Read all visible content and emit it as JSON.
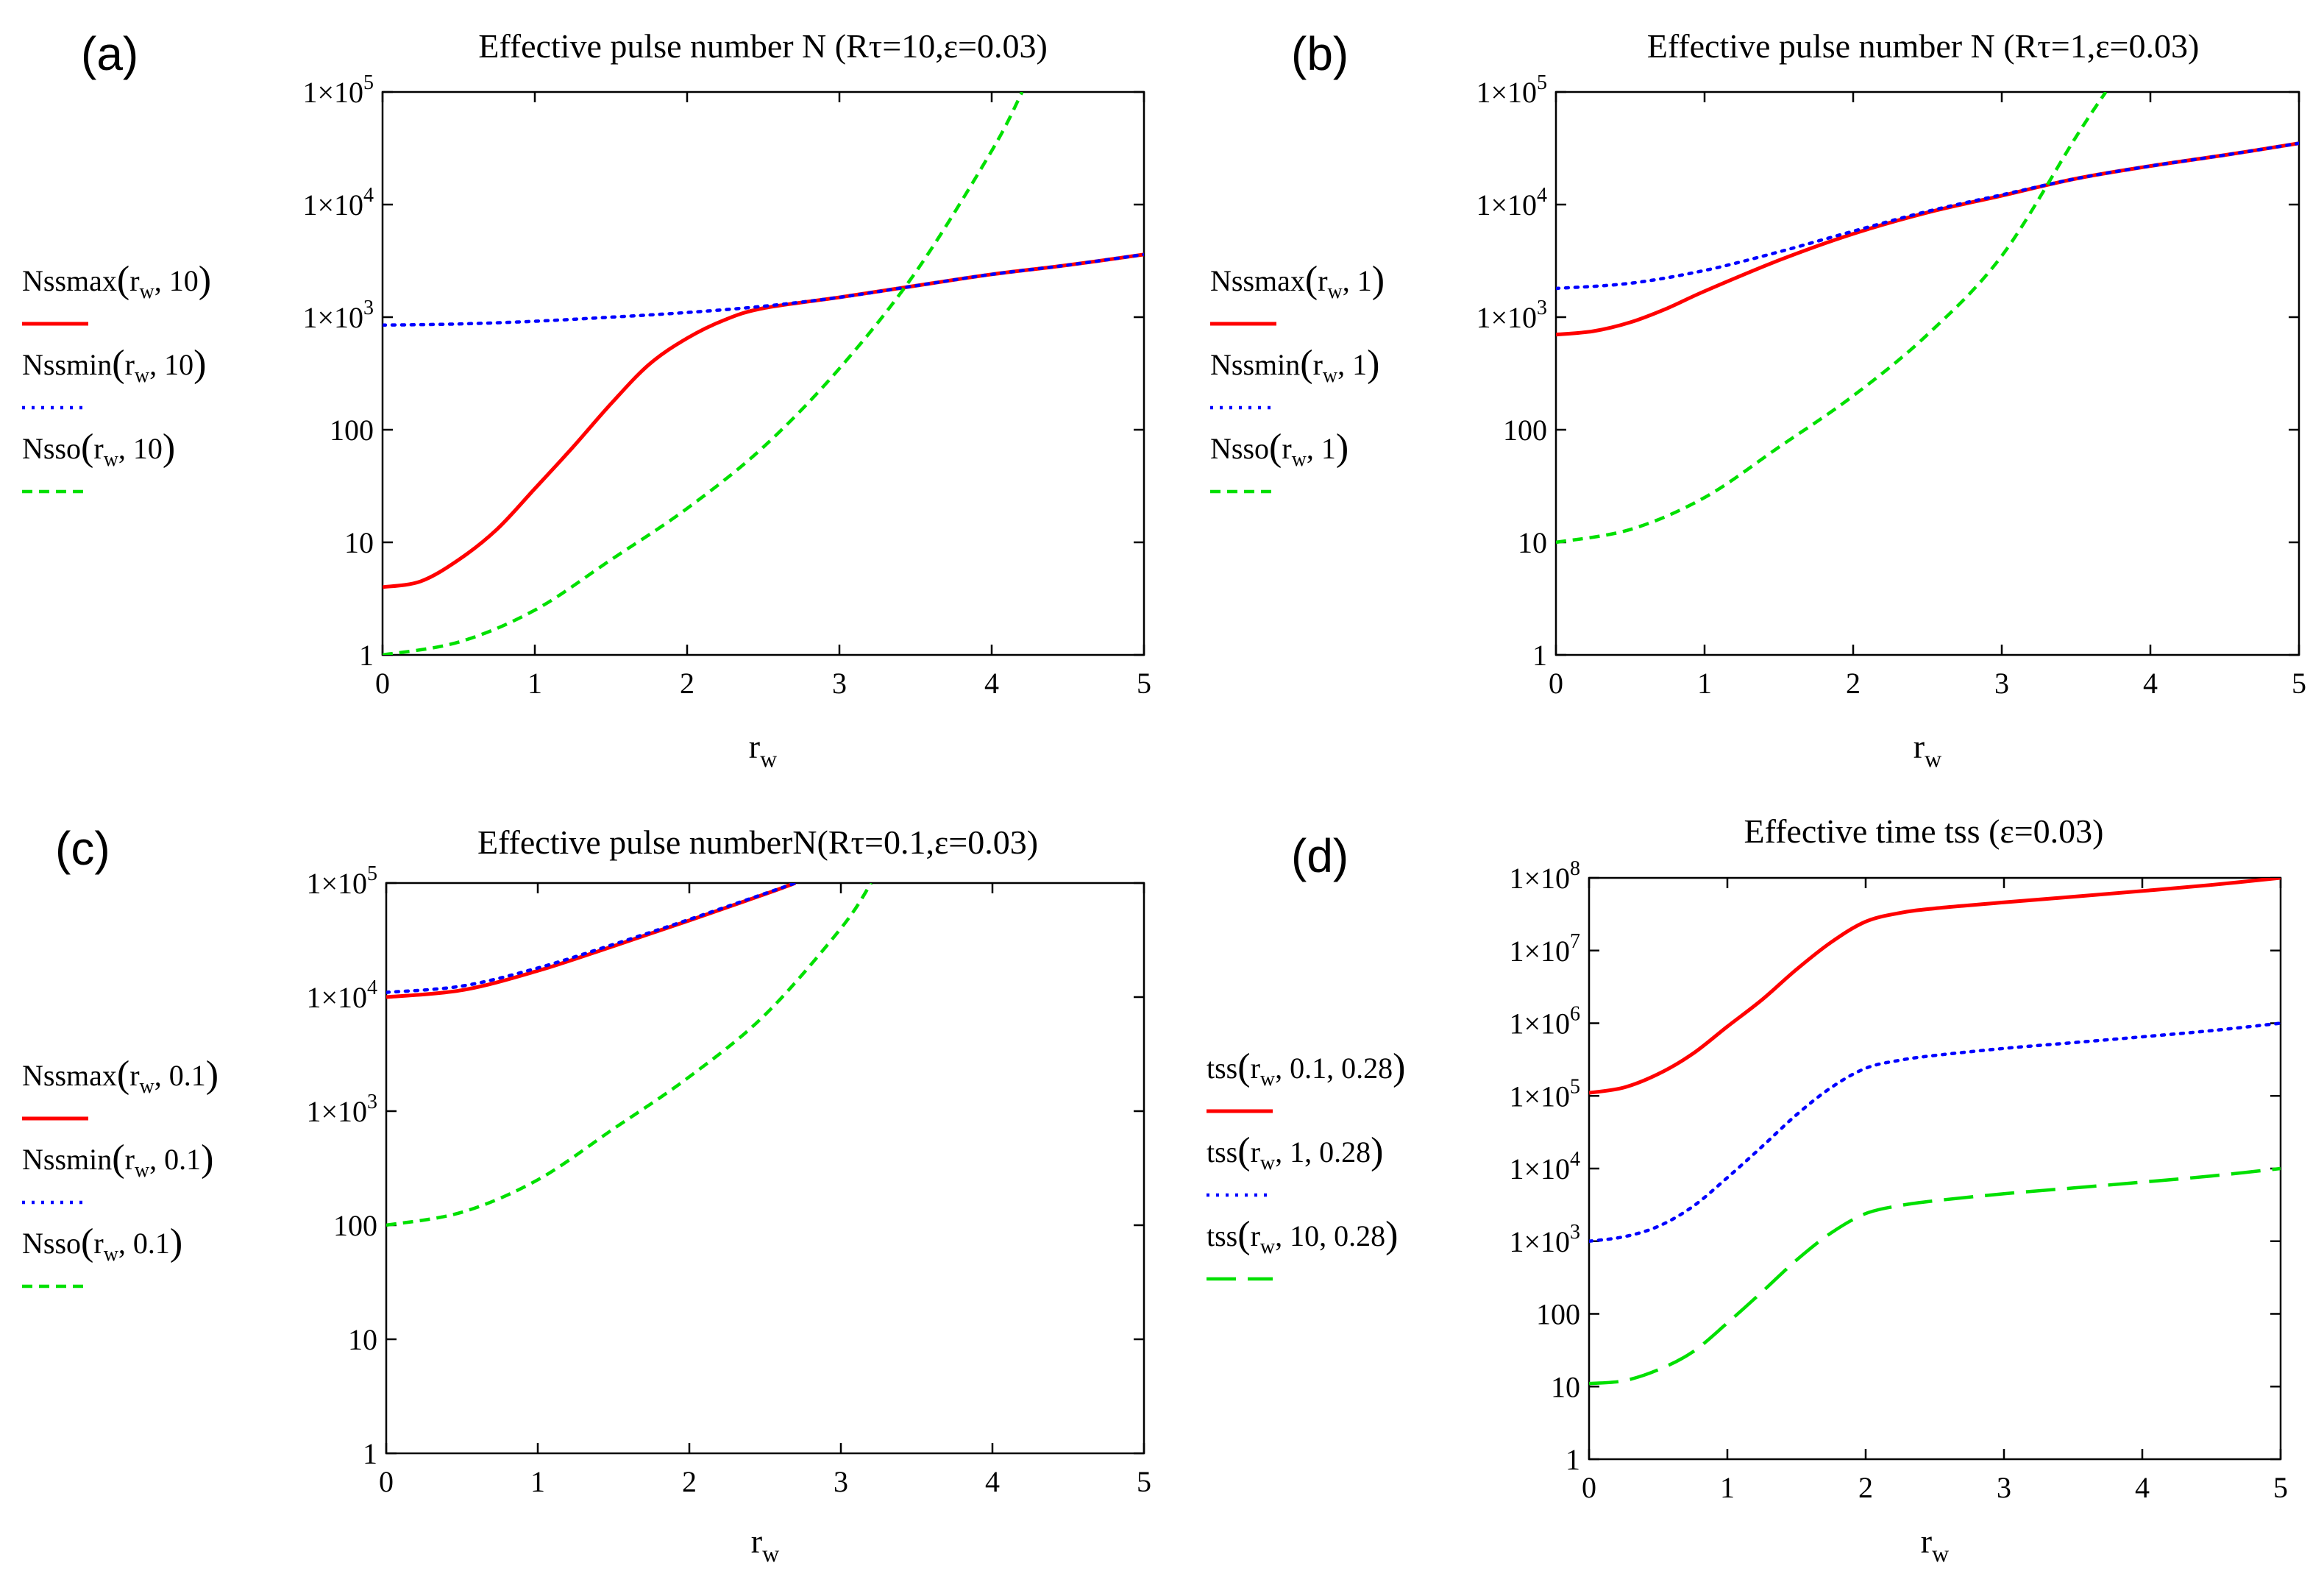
{
  "figure": {
    "colors": {
      "red": "#ff0000",
      "blue": "#0000ff",
      "green": "#00e000",
      "axis": "#000000",
      "grid": "#000000"
    }
  },
  "chart_data": [
    {
      "panel_label": "(a)",
      "type": "line",
      "title": "Effective pulse number N (Rτ=10,ε=0.03)",
      "xlabel": "r",
      "xlabel_sub": "w",
      "xlim": [
        0,
        5
      ],
      "ylim": [
        1,
        100000
      ],
      "yscale": "log",
      "x_ticks": [
        "0",
        "1",
        "2",
        "3",
        "4",
        "5"
      ],
      "y_ticks": [
        {
          "value": 1,
          "label": "1",
          "sup": ""
        },
        {
          "value": 10,
          "label": "10",
          "sup": ""
        },
        {
          "value": 100,
          "label": "100",
          "sup": ""
        },
        {
          "value": 1000,
          "label": "1×10",
          "sup": "3"
        },
        {
          "value": 10000,
          "label": "1×10",
          "sup": "4"
        },
        {
          "value": 100000,
          "label": "1×10",
          "sup": "5"
        }
      ],
      "series": [
        {
          "name": "Nssmax(rw, 10)",
          "legend": {
            "fn": "Nssmax",
            "arg": ", 10"
          },
          "color": "red",
          "style": "solid",
          "x": [
            0,
            0.25,
            0.5,
            0.75,
            1,
            1.25,
            1.5,
            1.75,
            2,
            2.25,
            2.5,
            3,
            3.5,
            4,
            4.5,
            5
          ],
          "y": [
            4,
            4.5,
            7,
            13,
            30,
            70,
            170,
            380,
            650,
            950,
            1200,
            1500,
            1900,
            2400,
            2900,
            3600
          ]
        },
        {
          "name": "Nssmin(rw, 10)",
          "legend": {
            "fn": "Nssmin",
            "arg": ", 10"
          },
          "color": "blue",
          "style": "dotted",
          "x": [
            0,
            0.5,
            1,
            1.5,
            2,
            2.5,
            3,
            3.5,
            4,
            4.5,
            5
          ],
          "y": [
            850,
            870,
            920,
            1000,
            1100,
            1250,
            1500,
            1900,
            2400,
            2900,
            3600
          ]
        },
        {
          "name": "Nsso(rw, 10)",
          "legend": {
            "fn": "Nsso",
            "arg": ", 10"
          },
          "color": "green",
          "style": "dashed",
          "x": [
            0,
            0.5,
            1,
            1.5,
            2,
            2.5,
            3,
            3.5,
            4,
            4.2
          ],
          "y": [
            1,
            1.3,
            2.5,
            7,
            20,
            70,
            350,
            2500,
            30000,
            100000
          ]
        }
      ]
    },
    {
      "panel_label": "(b)",
      "type": "line",
      "title": "Effective pulse number N (Rτ=1,ε=0.03)",
      "xlabel": "r",
      "xlabel_sub": "w",
      "xlim": [
        0,
        5
      ],
      "ylim": [
        1,
        100000
      ],
      "yscale": "log",
      "x_ticks": [
        "0",
        "1",
        "2",
        "3",
        "4",
        "5"
      ],
      "y_ticks": [
        {
          "value": 1,
          "label": "1",
          "sup": ""
        },
        {
          "value": 10,
          "label": "10",
          "sup": ""
        },
        {
          "value": 100,
          "label": "100",
          "sup": ""
        },
        {
          "value": 1000,
          "label": "1×10",
          "sup": "3"
        },
        {
          "value": 10000,
          "label": "1×10",
          "sup": "4"
        },
        {
          "value": 100000,
          "label": "1×10",
          "sup": "5"
        }
      ],
      "series": [
        {
          "name": "Nssmax(rw, 1)",
          "legend": {
            "fn": "Nssmax",
            "arg": ", 1"
          },
          "color": "red",
          "style": "solid",
          "x": [
            0,
            0.25,
            0.5,
            0.75,
            1,
            1.5,
            2,
            2.5,
            3,
            3.5,
            4,
            4.5,
            5
          ],
          "y": [
            700,
            750,
            900,
            1200,
            1700,
            3200,
            5500,
            8500,
            12000,
            17000,
            22000,
            27500,
            35000
          ]
        },
        {
          "name": "Nssmin(rw, 1)",
          "legend": {
            "fn": "Nssmin",
            "arg": ", 1"
          },
          "color": "blue",
          "style": "dotted",
          "x": [
            0,
            0.5,
            1,
            1.5,
            2,
            2.5,
            3,
            3.5,
            4,
            4.5,
            5
          ],
          "y": [
            1800,
            2000,
            2600,
            3800,
            5800,
            8700,
            12200,
            17000,
            22000,
            27500,
            35000
          ]
        },
        {
          "name": "Nsso(rw, 1)",
          "legend": {
            "fn": "Nsso",
            "arg": ", 1"
          },
          "color": "green",
          "style": "dashed",
          "x": [
            0,
            0.5,
            1,
            1.5,
            2,
            2.5,
            3,
            3.5,
            3.7
          ],
          "y": [
            10,
            13,
            25,
            70,
            200,
            700,
            3500,
            40000,
            100000
          ]
        }
      ]
    },
    {
      "panel_label": "(c)",
      "type": "line",
      "title": "Effective pulse numberN(Rτ=0.1,ε=0.03)",
      "xlabel": "r",
      "xlabel_sub": "w",
      "xlim": [
        0,
        5
      ],
      "ylim": [
        1,
        100000
      ],
      "yscale": "log",
      "x_ticks": [
        "0",
        "1",
        "2",
        "3",
        "4",
        "5"
      ],
      "y_ticks": [
        {
          "value": 1,
          "label": "1",
          "sup": ""
        },
        {
          "value": 10,
          "label": "10",
          "sup": ""
        },
        {
          "value": 100,
          "label": "100",
          "sup": ""
        },
        {
          "value": 1000,
          "label": "1×10",
          "sup": "3"
        },
        {
          "value": 10000,
          "label": "1×10",
          "sup": "4"
        },
        {
          "value": 100000,
          "label": "1×10",
          "sup": "5"
        }
      ],
      "series": [
        {
          "name": "Nssmax(rw, 0.1)",
          "legend": {
            "fn": "Nssmax",
            "arg": ", 0.1"
          },
          "color": "red",
          "style": "solid",
          "x": [
            0,
            0.5,
            1,
            1.5,
            2,
            2.5,
            2.7
          ],
          "y": [
            10000,
            11500,
            17000,
            28000,
            47000,
            80000,
            100000
          ]
        },
        {
          "name": "Nssmin(rw, 0.1)",
          "legend": {
            "fn": "Nssmin",
            "arg": ", 0.1"
          },
          "color": "blue",
          "style": "dotted",
          "x": [
            0,
            0.5,
            1,
            1.5,
            2,
            2.5,
            2.7
          ],
          "y": [
            11000,
            12500,
            18000,
            29000,
            48000,
            81000,
            100000
          ]
        },
        {
          "name": "Nsso(rw, 0.1)",
          "legend": {
            "fn": "Nsso",
            "arg": ", 0.1"
          },
          "color": "green",
          "style": "dashed",
          "x": [
            0,
            0.5,
            1,
            1.5,
            2,
            2.5,
            3,
            3.2
          ],
          "y": [
            100,
            130,
            250,
            700,
            2000,
            7000,
            40000,
            100000
          ]
        }
      ]
    },
    {
      "panel_label": "(d)",
      "type": "line",
      "title": "Effective time tss (ε=0.03)",
      "xlabel": "r",
      "xlabel_sub": "w",
      "xlim": [
        0,
        5
      ],
      "ylim": [
        1,
        100000000
      ],
      "yscale": "log",
      "x_ticks": [
        "0",
        "1",
        "2",
        "3",
        "4",
        "5"
      ],
      "y_ticks": [
        {
          "value": 1,
          "label": "1",
          "sup": ""
        },
        {
          "value": 10,
          "label": "10",
          "sup": ""
        },
        {
          "value": 100,
          "label": "100",
          "sup": ""
        },
        {
          "value": 1000,
          "label": "1×10",
          "sup": "3"
        },
        {
          "value": 10000,
          "label": "1×10",
          "sup": "4"
        },
        {
          "value": 100000,
          "label": "1×10",
          "sup": "5"
        },
        {
          "value": 1000000,
          "label": "1×10",
          "sup": "6"
        },
        {
          "value": 10000000,
          "label": "1×10",
          "sup": "7"
        },
        {
          "value": 100000000,
          "label": "1×10",
          "sup": "8"
        }
      ],
      "series": [
        {
          "name": "tss(rw, 0.1, 0.28)",
          "legend": {
            "fn": "tss",
            "arg": ", 0.1, 0.28"
          },
          "color": "red",
          "style": "solid",
          "x": [
            0,
            0.25,
            0.5,
            0.75,
            1,
            1.25,
            1.5,
            1.75,
            2,
            2.25,
            2.5,
            3,
            3.5,
            4,
            4.5,
            5
          ],
          "y": [
            110000,
            130000,
            200000,
            380000,
            900000,
            2100000,
            5500000,
            13000000,
            25000000,
            33000000,
            38000000,
            46000000,
            55000000,
            66000000,
            80000000,
            100000000
          ]
        },
        {
          "name": "tss(rw, 1, 0.28)",
          "legend": {
            "fn": "tss",
            "arg": ", 1, 0.28"
          },
          "color": "blue",
          "style": "dotted",
          "x": [
            0,
            0.25,
            0.5,
            0.75,
            1,
            1.25,
            1.5,
            1.75,
            2,
            2.25,
            2.5,
            3,
            3.5,
            4,
            4.5,
            5
          ],
          "y": [
            1000,
            1150,
            1600,
            3000,
            7500,
            20000,
            55000,
            130000,
            240000,
            310000,
            360000,
            450000,
            540000,
            650000,
            790000,
            1000000
          ]
        },
        {
          "name": "tss(rw, 10, 0.28)",
          "legend": {
            "fn": "tss",
            "arg": ", 10, 0.28"
          },
          "color": "green",
          "style": "longdash",
          "x": [
            0,
            0.25,
            0.5,
            0.75,
            1,
            1.25,
            1.5,
            1.75,
            2,
            2.25,
            2.5,
            3,
            3.5,
            4,
            4.5,
            5
          ],
          "y": [
            11,
            12,
            17,
            30,
            75,
            200,
            550,
            1300,
            2400,
            3100,
            3600,
            4500,
            5400,
            6500,
            7900,
            10000
          ]
        }
      ]
    }
  ]
}
